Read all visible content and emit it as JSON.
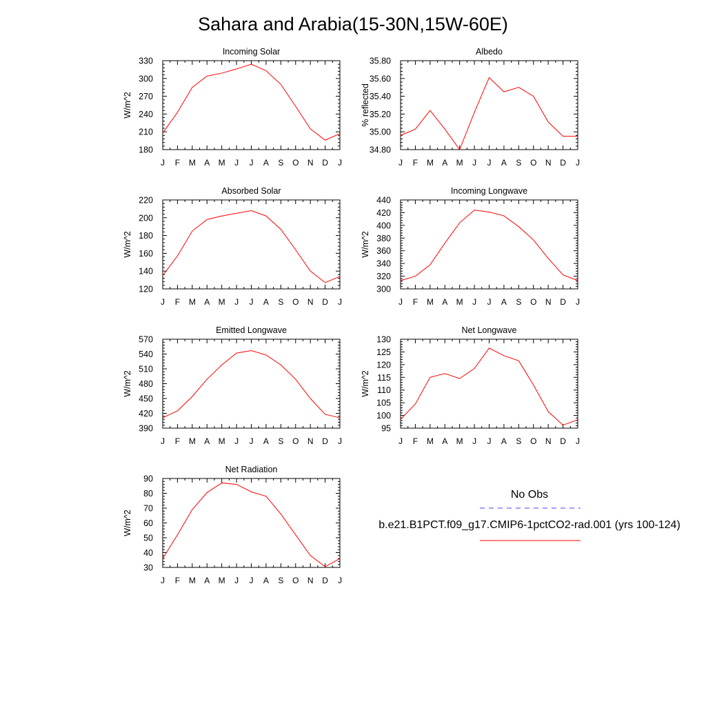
{
  "title": "Sahara and Arabia(15-30N,15W-60E)",
  "legend": {
    "obs_label": "No Obs",
    "case_label": "b.e21.B1PCT.f09_g17.CMIP6-1pctCO2-rad.001 (yrs 100-124)",
    "obs_color": "#4040ff",
    "case_color": "#ff0000"
  },
  "chart_data": [
    {
      "type": "line",
      "title": "Incoming Solar",
      "ylabel": "W/m^2",
      "categories": [
        "J",
        "F",
        "M",
        "A",
        "M",
        "J",
        "J",
        "A",
        "S",
        "O",
        "N",
        "D",
        "J"
      ],
      "y_ticks": [
        "180",
        "210",
        "240",
        "270",
        "300",
        "330"
      ],
      "ylim": [
        180,
        330
      ],
      "series": [
        {
          "values": [
            208,
            243,
            285,
            304,
            309,
            316,
            324,
            313,
            290,
            253,
            215,
            196,
            207
          ],
          "color": "#ff0000"
        }
      ]
    },
    {
      "type": "line",
      "title": "Albedo",
      "ylabel": "% reflected",
      "categories": [
        "J",
        "F",
        "M",
        "A",
        "M",
        "J",
        "J",
        "A",
        "S",
        "O",
        "N",
        "D",
        "J"
      ],
      "y_ticks": [
        "34.80",
        "35.00",
        "35.20",
        "35.40",
        "35.60",
        "35.80"
      ],
      "ylim": [
        34.8,
        35.8
      ],
      "series": [
        {
          "values": [
            34.96,
            35.03,
            35.24,
            35.03,
            34.8,
            35.22,
            35.61,
            35.45,
            35.5,
            35.4,
            35.11,
            34.95,
            34.95
          ],
          "color": "#ff0000"
        }
      ]
    },
    {
      "type": "line",
      "title": "Absorbed Solar",
      "ylabel": "W/m^2",
      "categories": [
        "J",
        "F",
        "M",
        "A",
        "M",
        "J",
        "J",
        "A",
        "S",
        "O",
        "N",
        "D",
        "J"
      ],
      "y_ticks": [
        "120",
        "140",
        "160",
        "180",
        "200",
        "220"
      ],
      "ylim": [
        120,
        220
      ],
      "series": [
        {
          "values": [
            135,
            157,
            185,
            198,
            202,
            205,
            208,
            202,
            187,
            164,
            140,
            127,
            134
          ],
          "color": "#ff0000"
        }
      ]
    },
    {
      "type": "line",
      "title": "Incoming Longwave",
      "ylabel": "W/m^2",
      "categories": [
        "J",
        "F",
        "M",
        "A",
        "M",
        "J",
        "J",
        "A",
        "S",
        "O",
        "N",
        "D",
        "J"
      ],
      "y_ticks": [
        "300",
        "320",
        "340",
        "360",
        "380",
        "400",
        "420",
        "440"
      ],
      "ylim": [
        300,
        440
      ],
      "series": [
        {
          "values": [
            313,
            320,
            338,
            372,
            404,
            424,
            421,
            415,
            398,
            377,
            348,
            322,
            313
          ],
          "color": "#ff0000"
        }
      ]
    },
    {
      "type": "line",
      "title": "Emitted Longwave",
      "ylabel": "W/m^2",
      "categories": [
        "J",
        "F",
        "M",
        "A",
        "M",
        "J",
        "J",
        "A",
        "S",
        "O",
        "N",
        "D",
        "J"
      ],
      "y_ticks": [
        "390",
        "420",
        "450",
        "480",
        "510",
        "540",
        "570"
      ],
      "ylim": [
        390,
        570
      ],
      "series": [
        {
          "values": [
            411,
            425,
            454,
            489,
            518,
            542,
            547,
            538,
            518,
            489,
            450,
            418,
            411
          ],
          "color": "#ff0000"
        }
      ]
    },
    {
      "type": "line",
      "title": "Net Longwave",
      "ylabel": "W/m^2",
      "categories": [
        "J",
        "F",
        "M",
        "A",
        "M",
        "J",
        "J",
        "A",
        "S",
        "O",
        "N",
        "D",
        "J"
      ],
      "y_ticks": [
        "95",
        "100",
        "105",
        "110",
        "115",
        "120",
        "125",
        "130"
      ],
      "ylim": [
        95,
        130
      ],
      "series": [
        {
          "values": [
            98.5,
            104.5,
            115,
            116.5,
            114.5,
            118.5,
            126.5,
            123.5,
            121.5,
            112,
            101.5,
            96.2,
            98.3
          ],
          "color": "#ff0000"
        }
      ]
    },
    {
      "type": "line",
      "title": "Net Radiation",
      "ylabel": "W/m^2",
      "categories": [
        "J",
        "F",
        "M",
        "A",
        "M",
        "J",
        "J",
        "A",
        "S",
        "O",
        "N",
        "D",
        "J"
      ],
      "y_ticks": [
        "30",
        "40",
        "50",
        "60",
        "70",
        "80",
        "90"
      ],
      "ylim": [
        30,
        90
      ],
      "series": [
        {
          "values": [
            36,
            52,
            69,
            80.5,
            87,
            86,
            81,
            78,
            66,
            52,
            38,
            30.5,
            36
          ],
          "color": "#ff0000"
        }
      ]
    }
  ]
}
